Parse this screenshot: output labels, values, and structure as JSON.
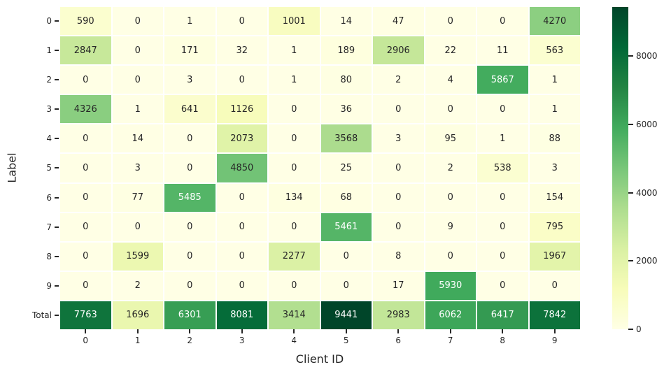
{
  "chart_data": {
    "type": "heatmap",
    "title": "",
    "xlabel": "Client ID",
    "ylabel": "Label",
    "x_categories": [
      "0",
      "1",
      "2",
      "3",
      "4",
      "5",
      "6",
      "7",
      "8",
      "9"
    ],
    "y_categories": [
      "0",
      "1",
      "2",
      "3",
      "4",
      "5",
      "6",
      "7",
      "8",
      "9",
      "Total"
    ],
    "rows": [
      [
        590,
        0,
        1,
        0,
        1001,
        14,
        47,
        0,
        0,
        4270
      ],
      [
        2847,
        0,
        171,
        32,
        1,
        189,
        2906,
        22,
        11,
        563
      ],
      [
        0,
        0,
        3,
        0,
        1,
        80,
        2,
        4,
        5867,
        1
      ],
      [
        4326,
        1,
        641,
        1126,
        0,
        36,
        0,
        0,
        0,
        1
      ],
      [
        0,
        14,
        0,
        2073,
        0,
        3568,
        3,
        95,
        1,
        88
      ],
      [
        0,
        3,
        0,
        4850,
        0,
        25,
        0,
        2,
        538,
        3
      ],
      [
        0,
        77,
        5485,
        0,
        134,
        68,
        0,
        0,
        0,
        154
      ],
      [
        0,
        0,
        0,
        0,
        0,
        5461,
        0,
        9,
        0,
        795
      ],
      [
        0,
        1599,
        0,
        0,
        2277,
        0,
        8,
        0,
        0,
        1967
      ],
      [
        0,
        2,
        0,
        0,
        0,
        0,
        17,
        5930,
        0,
        0
      ],
      [
        7763,
        1696,
        6301,
        8081,
        3414,
        9441,
        2983,
        6062,
        6417,
        7842
      ]
    ],
    "vmin": 0,
    "vmax": 9441,
    "colormap": {
      "name": "YlGn",
      "stops": [
        "#ffffe5",
        "#f7fcb9",
        "#d9f0a3",
        "#addd8e",
        "#78c679",
        "#41ab5d",
        "#238443",
        "#006837",
        "#004529"
      ]
    },
    "colorbar": {
      "ticks": [
        0,
        2000,
        4000,
        6000,
        8000
      ],
      "position": "right"
    },
    "annotation_colors": {
      "dark": "#262626",
      "light": "#ffffff"
    },
    "grid_line_color": "#ffffff",
    "legend_position": "none",
    "grid_on": false
  }
}
